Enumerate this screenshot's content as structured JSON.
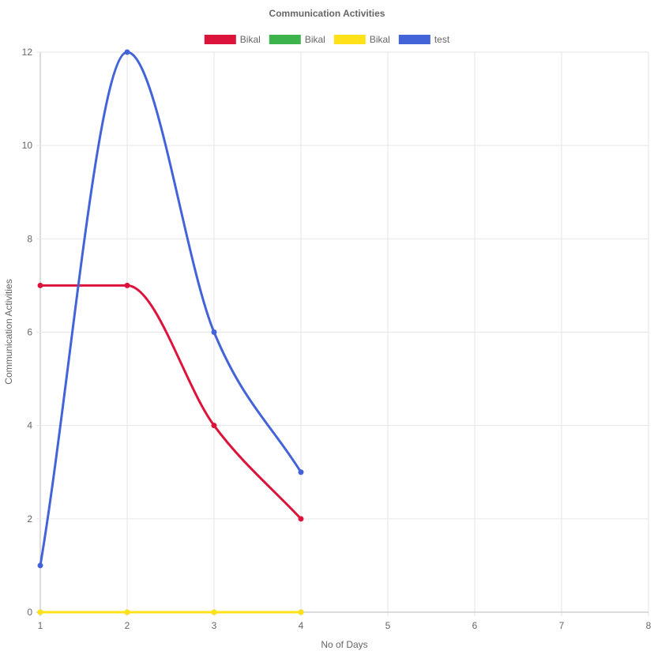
{
  "chart_data": {
    "type": "line",
    "title": "Communication Activities",
    "xlabel": "No of Days",
    "ylabel": "Communication Activities",
    "x_ticks": [
      "1",
      "2",
      "3",
      "4",
      "5",
      "6",
      "7",
      "8"
    ],
    "y_ticks": [
      "0",
      "2",
      "4",
      "6",
      "8",
      "10",
      "12"
    ],
    "xlim": [
      1,
      8
    ],
    "ylim": [
      0,
      12
    ],
    "grid": true,
    "legend_position": "top",
    "series": [
      {
        "name": "Bikal",
        "color": "#DC143C",
        "x": [
          1,
          2,
          3,
          4
        ],
        "y": [
          7,
          7,
          4,
          2
        ]
      },
      {
        "name": "Bikal",
        "color": "#3CB44B",
        "x": [
          1,
          2,
          3,
          4
        ],
        "y": [
          0,
          0,
          0,
          0
        ]
      },
      {
        "name": "Bikal",
        "color": "#FFE119",
        "x": [
          1,
          2,
          3,
          4
        ],
        "y": [
          0,
          0,
          0,
          0
        ]
      },
      {
        "name": "test",
        "color": "#4363D8",
        "x": [
          1,
          2,
          3,
          4
        ],
        "y": [
          1,
          12,
          6,
          3
        ]
      }
    ]
  }
}
